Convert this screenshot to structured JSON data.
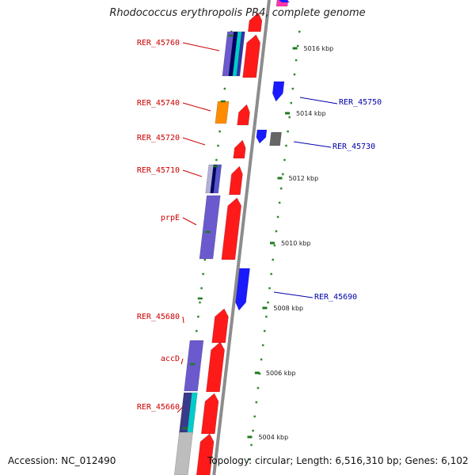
{
  "title": "Rhodococcus erythropolis PR4, complete genome",
  "footer": {
    "accession": "Accession: NC_012490",
    "topology": "Topology: circular; Length: 6,516,310 bp; Genes: 6,102"
  },
  "colors": {
    "backbone": "#8c8c8c",
    "forward": "#ff1a1a",
    "reverse": "#1a1aff",
    "left_label": "#cc0000",
    "right_label": "#0000aa",
    "dots": "#2e8b2e",
    "ticks": "#1f7a1f"
  },
  "ticks": [
    {
      "label": "5016 kbp",
      "kbp": 5016
    },
    {
      "label": "5014 kbp",
      "kbp": 5014
    },
    {
      "label": "5012 kbp",
      "kbp": 5012
    },
    {
      "label": "5010 kbp",
      "kbp": 5010
    },
    {
      "label": "5008 kbp",
      "kbp": 5008
    },
    {
      "label": "5006 kbp",
      "kbp": 5006
    },
    {
      "label": "5004 kbp",
      "kbp": 5004
    }
  ],
  "gene_labels_left": [
    {
      "name": "RER_45760"
    },
    {
      "name": "RER_45740"
    },
    {
      "name": "RER_45720"
    },
    {
      "name": "RER_45710"
    },
    {
      "name": "prpE"
    },
    {
      "name": "RER_45680"
    },
    {
      "name": "accD"
    },
    {
      "name": "RER_45660"
    }
  ],
  "gene_labels_right": [
    {
      "name": "RER_45750"
    },
    {
      "name": "RER_45730"
    },
    {
      "name": "RER_45690"
    }
  ]
}
